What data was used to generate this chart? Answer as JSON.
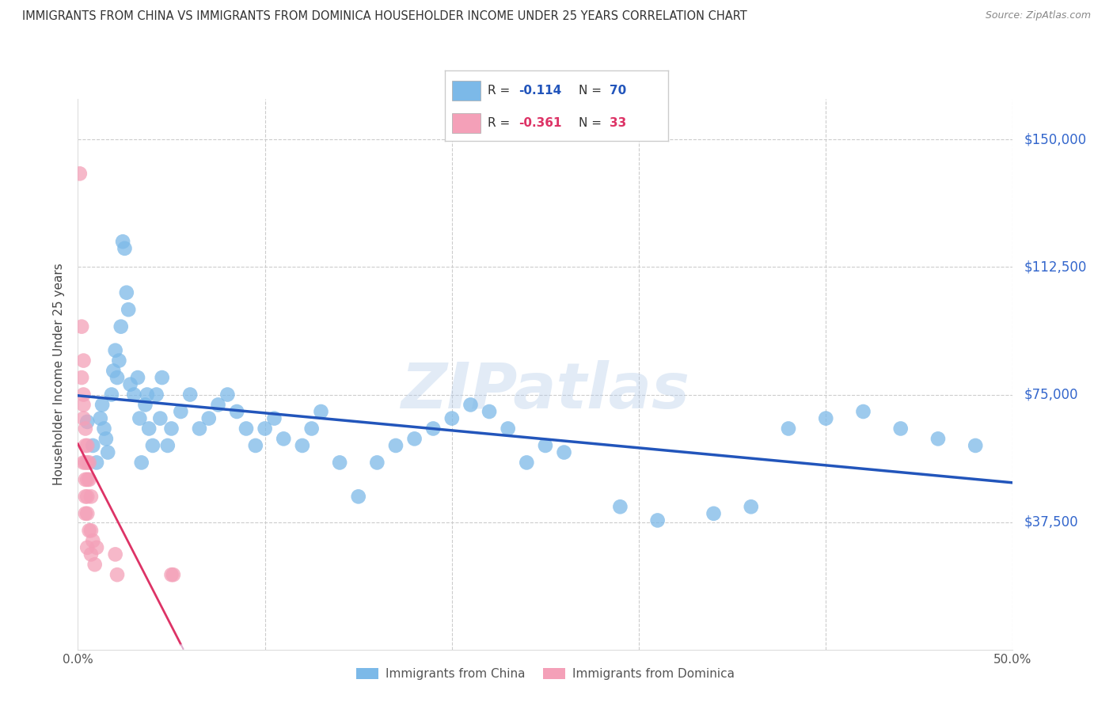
{
  "title": "IMMIGRANTS FROM CHINA VS IMMIGRANTS FROM DOMINICA HOUSEHOLDER INCOME UNDER 25 YEARS CORRELATION CHART",
  "source": "Source: ZipAtlas.com",
  "ylabel": "Householder Income Under 25 years",
  "ytick_labels": [
    "",
    "$37,500",
    "$75,000",
    "$112,500",
    "$150,000"
  ],
  "ytick_vals": [
    0,
    37500,
    75000,
    112500,
    150000
  ],
  "ylim": [
    0,
    162000
  ],
  "xlim": [
    0.0,
    0.5
  ],
  "china_color": "#7cb9e8",
  "dominica_color": "#f4a0b8",
  "china_line_color": "#2255bb",
  "dominica_line_color": "#dd3366",
  "dominica_dash_color": "#ddaacc",
  "watermark": "ZIPatlas",
  "china_R": "-0.114",
  "china_N": "70",
  "dominica_R": "-0.361",
  "dominica_N": "33",
  "china_points_x": [
    0.005,
    0.008,
    0.01,
    0.012,
    0.013,
    0.014,
    0.015,
    0.016,
    0.018,
    0.019,
    0.02,
    0.021,
    0.022,
    0.023,
    0.024,
    0.025,
    0.026,
    0.027,
    0.028,
    0.03,
    0.032,
    0.033,
    0.034,
    0.036,
    0.037,
    0.038,
    0.04,
    0.042,
    0.044,
    0.045,
    0.048,
    0.05,
    0.055,
    0.06,
    0.065,
    0.07,
    0.075,
    0.08,
    0.085,
    0.09,
    0.095,
    0.1,
    0.105,
    0.11,
    0.12,
    0.125,
    0.13,
    0.14,
    0.15,
    0.16,
    0.17,
    0.18,
    0.19,
    0.2,
    0.21,
    0.22,
    0.23,
    0.24,
    0.25,
    0.26,
    0.29,
    0.31,
    0.34,
    0.36,
    0.38,
    0.4,
    0.42,
    0.44,
    0.46,
    0.48
  ],
  "china_points_y": [
    67000,
    60000,
    55000,
    68000,
    72000,
    65000,
    62000,
    58000,
    75000,
    82000,
    88000,
    80000,
    85000,
    95000,
    120000,
    118000,
    105000,
    100000,
    78000,
    75000,
    80000,
    68000,
    55000,
    72000,
    75000,
    65000,
    60000,
    75000,
    68000,
    80000,
    60000,
    65000,
    70000,
    75000,
    65000,
    68000,
    72000,
    75000,
    70000,
    65000,
    60000,
    65000,
    68000,
    62000,
    60000,
    65000,
    70000,
    55000,
    45000,
    55000,
    60000,
    62000,
    65000,
    68000,
    72000,
    70000,
    65000,
    55000,
    60000,
    58000,
    42000,
    38000,
    40000,
    42000,
    65000,
    68000,
    70000,
    65000,
    62000,
    60000
  ],
  "dominica_points_x": [
    0.001,
    0.002,
    0.002,
    0.003,
    0.003,
    0.003,
    0.003,
    0.003,
    0.004,
    0.004,
    0.004,
    0.004,
    0.004,
    0.004,
    0.005,
    0.005,
    0.005,
    0.005,
    0.005,
    0.005,
    0.006,
    0.006,
    0.006,
    0.007,
    0.007,
    0.007,
    0.008,
    0.009,
    0.01,
    0.02,
    0.021,
    0.05,
    0.051
  ],
  "dominica_points_y": [
    140000,
    95000,
    80000,
    85000,
    75000,
    72000,
    68000,
    55000,
    65000,
    60000,
    55000,
    50000,
    45000,
    40000,
    60000,
    55000,
    50000,
    45000,
    40000,
    30000,
    55000,
    50000,
    35000,
    45000,
    35000,
    28000,
    32000,
    25000,
    30000,
    28000,
    22000,
    22000,
    22000
  ]
}
